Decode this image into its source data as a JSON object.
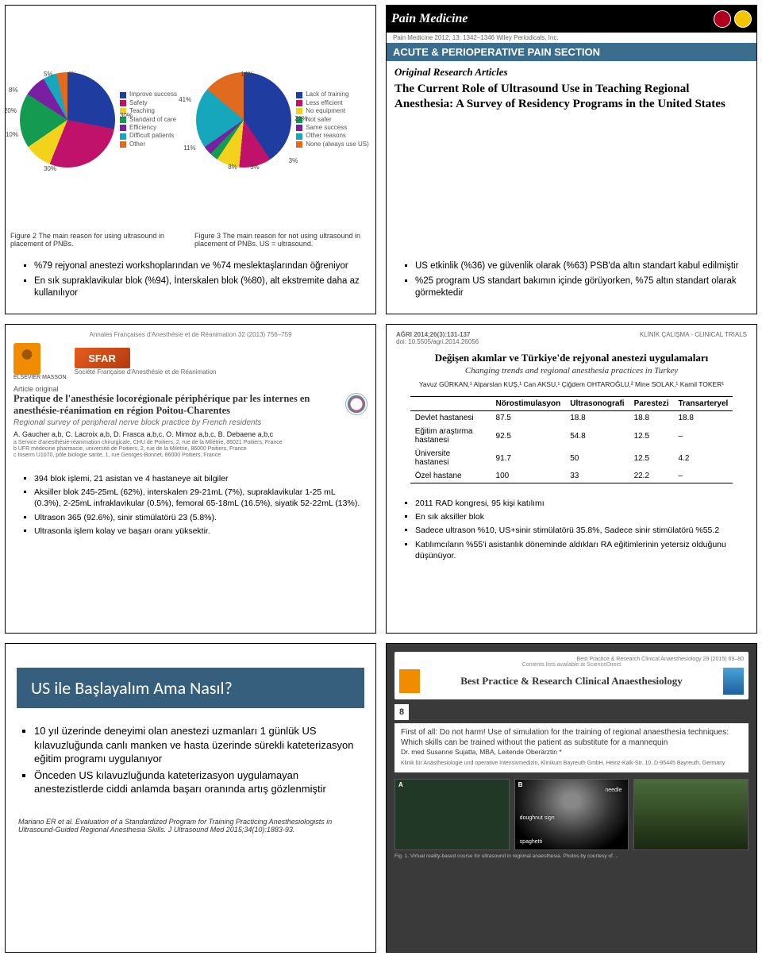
{
  "slide1": {
    "fig2_caption": "Figure 2  The main reason for using ultrasound in placement of PNBs.",
    "fig3_caption": "Figure 3  The main reason for not using ultrasound in placement of PNBs. US = ultrasound.",
    "pie2": {
      "type": "pie",
      "slices": [
        {
          "label": "Improve success",
          "value": 30,
          "color": "#1f3da1"
        },
        {
          "label": "Safety",
          "value": 30,
          "color": "#c0126b"
        },
        {
          "label": "Teaching",
          "value": 10,
          "color": "#f2d21a"
        },
        {
          "label": "Standard of care",
          "value": 20,
          "color": "#159a52"
        },
        {
          "label": "Efficiency",
          "value": 8,
          "color": "#7a1fa2"
        },
        {
          "label": "Difficult patients",
          "value": 5,
          "color": "#17a7bd"
        },
        {
          "label": "Other",
          "value": 4,
          "color": "#e06a1f"
        }
      ],
      "pct_labels": [
        "5%",
        "4%",
        "8%",
        "20%",
        "10%",
        "30%",
        "30%"
      ]
    },
    "pie3": {
      "type": "pie",
      "slices": [
        {
          "label": "Lack of training",
          "value": 41,
          "color": "#1f3da1"
        },
        {
          "label": "Less efficient",
          "value": 11,
          "color": "#c0126b"
        },
        {
          "label": "No equipment",
          "value": 8,
          "color": "#f2d21a"
        },
        {
          "label": "Not safer",
          "value": 3,
          "color": "#159a52"
        },
        {
          "label": "Same success",
          "value": 3,
          "color": "#7a1fa2"
        },
        {
          "label": "Other reasons",
          "value": 21,
          "color": "#17a7bd"
        },
        {
          "label": "None (always use US)",
          "value": 14,
          "color": "#e06a1f"
        }
      ],
      "pct_labels": [
        "14%",
        "41%",
        "11%",
        "8%",
        "3%",
        "3%",
        "21%"
      ]
    },
    "bullets": [
      "%79 rejyonal anestezi workshoplarından ve %74 meslektaşlarından öğreniyor",
      "En sık supraklavikular blok (%94), İnterskalen blok (%80), alt ekstremite daha az kullanılıyor"
    ]
  },
  "slide2": {
    "journal_logo_text": "Pain Medicine",
    "citation": "Pain Medicine 2012; 13: 1342–1346  Wiley Periodicals, Inc.",
    "section": "ACUTE & PERIOPERATIVE PAIN SECTION",
    "subhead": "Original Research Articles",
    "title": "The Current Role of Ultrasound Use in Teaching Regional Anesthesia: A Survey of Residency Programs in the United States",
    "bullets": [
      "US etkinlik (%36) ve güvenlik olarak (%63) PSB'da altın standart kabul edilmiştir",
      "%25 program US standart bakımın içinde görüyorken, %75 altın standart olarak görmektedir"
    ]
  },
  "slide3": {
    "top_cite": "Annales Françaises d'Anesthésie et de Réanimation 32 (2013) 756–759",
    "elsevier_label": "ELSEVIER MASSON",
    "sfar_label": "SFAR",
    "sfar_sub": "Société Française d'Anesthésie et de Réanimation",
    "article_label": "Article original",
    "title_fr": "Pratique de l'anesthésie locorégionale périphérique par les internes en anesthésie-réanimation en région Poitou-Charentes",
    "title_en": "Regional survey of peripheral nerve block practice by French residents",
    "authors": "A. Gaucher a,b, C. Lacroix a,b, D. Frasca a,b,c, O. Mimoz a,b,c, B. Debaene a,b,c",
    "affil": "a Service d'anesthésie-réanimation chirurgicale, CHU de Poitiers, 2, rue de la Milétrie, 86021 Poitiers, France\nb UFR médecine pharmacie, université de Poitiers, 2, rue de la Milétrie, 86000 Poitiers, France\nc Inserm U1070, pôle biologie santé, 1, rue Georges-Bonnet, 86000 Poitiers, France",
    "crossmark": "CrossMark",
    "bullets": [
      "394 blok işlemi, 21 asistan ve 4 hastaneye ait bilgiler",
      "Aksiller blok 245-25mL (62%), interskalen 29-21mL (7%), supraklavikular 1-25 mL (0.3%), 2-25mL infraklavikular (0.5%), femoral 65-18mL (16.5%), siyatik 52-22mL (13%).",
      "Ultrason 365 (92.6%), sinir stimülatörü 23 (5.8%).",
      "Ultrasonla işlem kolay ve başarı oranı yüksektir."
    ]
  },
  "slide4": {
    "journal": "AĞRI  2014;26(3):131-137",
    "doi": "doi: 10.5505/agri.2014.26056",
    "section_label": "KLİNİK ÇALIŞMA - CLINICAL TRIALS",
    "title_tr": "Değişen akımlar ve Türkiye'de rejyonal anestezi uygulamaları",
    "title_en": "Changing trends and regional anesthesia practices in Turkey",
    "authors": "Yavuz GÜRKAN,¹ Alparslan KUŞ,¹ Can AKSU,¹ Çiğdem OHTAROĞLU,² Mine SOLAK,¹ Kamil TOKER¹",
    "table": {
      "type": "table",
      "columns": [
        "",
        "Nörostimulasyon",
        "Ultrasonografi",
        "Parestezi",
        "Transarteryel"
      ],
      "rows": [
        [
          "Devlet hastanesi",
          "87.5",
          "18.8",
          "18.8",
          "18.8"
        ],
        [
          "Eğitim araştırma hastanesi",
          "92.5",
          "54.8",
          "12.5",
          "–"
        ],
        [
          "Üniversite hastanesi",
          "91.7",
          "50",
          "12.5",
          "4.2"
        ],
        [
          "Özel hastane",
          "100",
          "33",
          "22.2",
          "–"
        ]
      ],
      "header_border": "#000000",
      "font_size": 10
    },
    "bullets": [
      "2011 RAD kongresi, 95 kişi katılımı",
      "En sık aksiller blok",
      "Sadece ultrason %10, US+sinir stimülatörü 35.8%, Sadece sinir stimülatörü %55.2",
      "Katılımcıların %55'i asistanlık döneminde aldıkları RA eğitimlerinin yetersiz olduğunu düşünüyor."
    ]
  },
  "slide5": {
    "banner": "US ile Başlayalım Ama Nasıl?",
    "banner_bg": "#365f7e",
    "banner_color": "#ffffff",
    "bullets": [
      "10 yıl üzerinde deneyimi olan anestezi uzmanları 1 günlük US kılavuzluğunda canlı manken ve hasta üzerinde sürekli kateterizasyon eğitim programı uygulanıyor",
      "Önceden US kılavuzluğunda kateterizasyon uygulamayan anestezistlerde ciddi anlamda başarı oranında artış gözlenmiştir"
    ],
    "reference": "Mariano ER et al. Evaluation of a Standardized Program for Training Practicing Anesthesiologists in Ultrasound-Guided Regional Anesthesia Skills. J Ultrasound Med 2015;34(10):1883-93."
  },
  "slide6": {
    "top_line": "Best Practice & Research Clinical Anaesthesiology 29 (2015) 69–80",
    "contents_label": "Contents lists available at ScienceDirect",
    "journal": "Best Practice & Research Clinical Anaesthesiology",
    "number": "8",
    "article_title": "First of all: Do not harm! Use of simulation for the training of regional anaesthesia techniques: Which skills can be trained without the patient as substitute for a mannequin",
    "author": "Dr. med Susanne Sujatta, MBA, Leitende Oberärztin *",
    "affil2": "Klinik für Anästhesiologie und operative Intensivmedizin, Klinikum Bayreuth GmbH, Heinz-Kalk-Str. 10, D-95445 Bayreuth, Germany",
    "panel_A": "A",
    "panel_B": "B",
    "panel_B_labels": [
      "needle",
      "doughnut sign",
      "spaghetti"
    ],
    "fig_caption": "Fig. 1. Virtual reality-based course for ultrasound in regional anaesthesia. Photos by courtesy of ... "
  }
}
